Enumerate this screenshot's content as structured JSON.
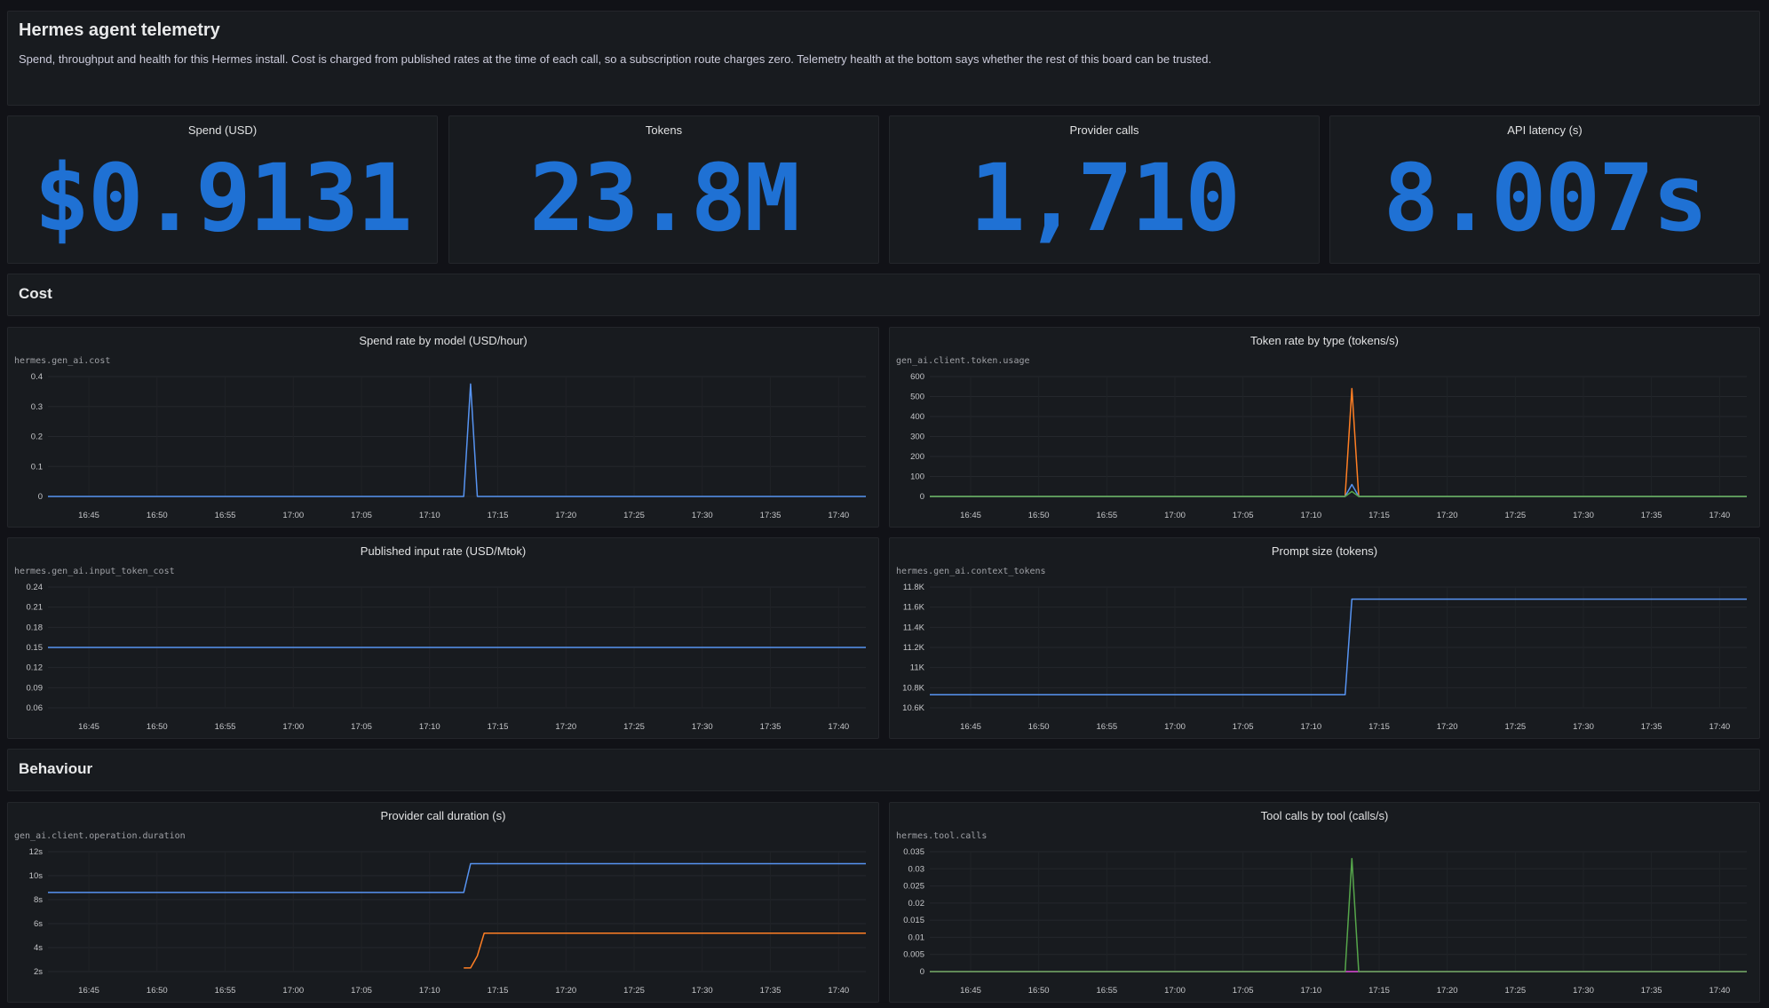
{
  "header": {
    "title": "Hermes agent telemetry",
    "description": "Spend, throughput and health for this Hermes install. Cost is charged from published rates at the time of each call, so a subscription route charges zero. Telemetry health at the bottom says whether the rest of this board can be trusted."
  },
  "stats": [
    {
      "label": "Spend (USD)",
      "value": "$0.9131"
    },
    {
      "label": "Tokens",
      "value": "23.8M"
    },
    {
      "label": "Provider calls",
      "value": "1,710"
    },
    {
      "label": "API latency (s)",
      "value": "8.007s"
    }
  ],
  "sections": {
    "cost": "Cost",
    "behaviour": "Behaviour"
  },
  "colors": {
    "accent": "#1f71d4",
    "blue": "#5794f2",
    "orange": "#ff7f24",
    "green": "#56a64b",
    "pink": "#e04ddc"
  },
  "chart_data": [
    {
      "id": "spend",
      "type": "line",
      "title": "Spend rate by model (USD/hour)",
      "metric": "hermes.gen_ai.cost",
      "x_ticks": [
        "16:45",
        "16:50",
        "16:55",
        "17:00",
        "17:05",
        "17:10",
        "17:15",
        "17:20",
        "17:25",
        "17:30",
        "17:35",
        "17:40"
      ],
      "y_ticks": [
        "0",
        "0.1",
        "0.2",
        "0.3",
        "0.4"
      ],
      "ylim": [
        0,
        0.4
      ],
      "xlim": [
        "16:42",
        "17:42"
      ],
      "series": [
        {
          "color": "#5794f2",
          "points": [
            [
              "16:42",
              0
            ],
            [
              "17:12.5",
              0
            ],
            [
              "17:13",
              0.375
            ],
            [
              "17:13.5",
              0
            ],
            [
              "17:42",
              0
            ]
          ]
        }
      ]
    },
    {
      "id": "tokens",
      "type": "line",
      "title": "Token rate by type (tokens/s)",
      "metric": "gen_ai.client.token.usage",
      "x_ticks": [
        "16:45",
        "16:50",
        "16:55",
        "17:00",
        "17:05",
        "17:10",
        "17:15",
        "17:20",
        "17:25",
        "17:30",
        "17:35",
        "17:40"
      ],
      "y_ticks": [
        "0",
        "100",
        "200",
        "300",
        "400",
        "500",
        "600"
      ],
      "ylim": [
        0,
        600
      ],
      "xlim": [
        "16:42",
        "17:42"
      ],
      "series": [
        {
          "color": "#ff7f24",
          "points": [
            [
              "16:42",
              0
            ],
            [
              "17:12.5",
              0
            ],
            [
              "17:13",
              540
            ],
            [
              "17:13.5",
              0
            ],
            [
              "17:42",
              0
            ]
          ]
        },
        {
          "color": "#5794f2",
          "points": [
            [
              "16:42",
              0
            ],
            [
              "17:12.5",
              0
            ],
            [
              "17:13",
              60
            ],
            [
              "17:13.5",
              0
            ],
            [
              "17:42",
              0
            ]
          ]
        },
        {
          "color": "#56a64b",
          "points": [
            [
              "16:42",
              0
            ],
            [
              "17:12.5",
              0
            ],
            [
              "17:13",
              25
            ],
            [
              "17:13.5",
              0
            ],
            [
              "17:42",
              0
            ]
          ]
        }
      ]
    },
    {
      "id": "input_rate",
      "type": "line",
      "title": "Published input rate (USD/Mtok)",
      "metric": "hermes.gen_ai.input_token_cost",
      "x_ticks": [
        "16:45",
        "16:50",
        "16:55",
        "17:00",
        "17:05",
        "17:10",
        "17:15",
        "17:20",
        "17:25",
        "17:30",
        "17:35",
        "17:40"
      ],
      "y_ticks": [
        "0.06",
        "0.09",
        "0.12",
        "0.15",
        "0.18",
        "0.21",
        "0.24"
      ],
      "ylim": [
        0.06,
        0.24
      ],
      "xlim": [
        "16:42",
        "17:42"
      ],
      "series": [
        {
          "color": "#5794f2",
          "points": [
            [
              "16:42",
              0.15
            ],
            [
              "17:42",
              0.15
            ]
          ]
        }
      ]
    },
    {
      "id": "prompt",
      "type": "line",
      "title": "Prompt size (tokens)",
      "metric": "hermes.gen_ai.context_tokens",
      "x_ticks": [
        "16:45",
        "16:50",
        "16:55",
        "17:00",
        "17:05",
        "17:10",
        "17:15",
        "17:20",
        "17:25",
        "17:30",
        "17:35",
        "17:40"
      ],
      "y_ticks": [
        "10.6K",
        "10.8K",
        "11K",
        "11.2K",
        "11.4K",
        "11.6K",
        "11.8K"
      ],
      "ylim": [
        10600,
        11800
      ],
      "xlim": [
        "16:42",
        "17:42"
      ],
      "series": [
        {
          "color": "#5794f2",
          "points": [
            [
              "16:42",
              10730
            ],
            [
              "17:12.5",
              10730
            ],
            [
              "17:13",
              11680
            ],
            [
              "17:42",
              11680
            ]
          ]
        }
      ]
    },
    {
      "id": "duration",
      "type": "line",
      "title": "Provider call duration (s)",
      "metric": "gen_ai.client.operation.duration",
      "x_ticks": [
        "16:45",
        "16:50",
        "16:55",
        "17:00",
        "17:05",
        "17:10",
        "17:15",
        "17:20",
        "17:25",
        "17:30",
        "17:35",
        "17:40"
      ],
      "y_ticks": [
        "2s",
        "4s",
        "6s",
        "8s",
        "10s",
        "12s"
      ],
      "ylim": [
        2,
        12
      ],
      "xlim": [
        "16:42",
        "17:42"
      ],
      "series": [
        {
          "color": "#5794f2",
          "points": [
            [
              "16:42",
              8.6
            ],
            [
              "17:12.5",
              8.6
            ],
            [
              "17:13",
              11
            ],
            [
              "17:42",
              11
            ]
          ]
        },
        {
          "color": "#ff7f24",
          "points": [
            [
              "17:12.5",
              2.3
            ],
            [
              "17:13",
              2.3
            ],
            [
              "17:13.5",
              3.3
            ],
            [
              "17:14",
              5.2
            ],
            [
              "17:42",
              5.2
            ]
          ]
        }
      ]
    },
    {
      "id": "tools",
      "type": "line",
      "title": "Tool calls by tool (calls/s)",
      "metric": "hermes.tool.calls",
      "x_ticks": [
        "16:45",
        "16:50",
        "16:55",
        "17:00",
        "17:05",
        "17:10",
        "17:15",
        "17:20",
        "17:25",
        "17:30",
        "17:35",
        "17:40"
      ],
      "y_ticks": [
        "0",
        "0.005",
        "0.01",
        "0.015",
        "0.02",
        "0.025",
        "0.03",
        "0.035"
      ],
      "ylim": [
        0,
        0.035
      ],
      "xlim": [
        "16:42",
        "17:42"
      ],
      "series": [
        {
          "color": "#e04ddc",
          "points": [
            [
              "16:42",
              0
            ],
            [
              "17:42",
              0
            ]
          ]
        },
        {
          "color": "#56a64b",
          "points": [
            [
              "16:42",
              0
            ],
            [
              "17:12.5",
              0
            ],
            [
              "17:13",
              0.033
            ],
            [
              "17:13.5",
              0
            ],
            [
              "17:42",
              0
            ]
          ]
        }
      ]
    }
  ]
}
